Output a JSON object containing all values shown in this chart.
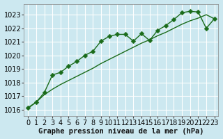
{
  "title": "Graphe pression niveau de la mer (hPa)",
  "background_color": "#cce8f0",
  "plot_bg_color": "#cce8f0",
  "grid_color": "#ffffff",
  "line_color": "#1a6b1a",
  "marker_color": "#1a6b1a",
  "x_values": [
    0,
    1,
    2,
    3,
    4,
    5,
    6,
    7,
    8,
    9,
    10,
    11,
    12,
    13,
    14,
    15,
    16,
    17,
    18,
    19,
    20,
    21,
    22,
    23
  ],
  "y_series1": [
    1016.15,
    1016.55,
    1017.25,
    1018.55,
    1018.75,
    1019.2,
    1019.55,
    1020.0,
    1020.3,
    1021.05,
    1021.4,
    1021.55,
    1021.55,
    1021.05,
    1021.6,
    1021.1,
    1021.85,
    1022.2,
    1022.65,
    1023.15,
    1023.25,
    1023.2,
    1022.0,
    1022.7
  ],
  "y_series2": [
    1016.1,
    1016.55,
    1017.1,
    1017.5,
    1017.85,
    1018.15,
    1018.45,
    1018.75,
    1019.05,
    1019.4,
    1019.7,
    1020.0,
    1020.3,
    1020.6,
    1020.9,
    1021.15,
    1021.45,
    1021.7,
    1022.0,
    1022.3,
    1022.55,
    1022.75,
    1023.0,
    1022.7
  ],
  "ylim": [
    1015.5,
    1023.8
  ],
  "yticks": [
    1016,
    1017,
    1018,
    1019,
    1020,
    1021,
    1022,
    1023
  ],
  "xlim": [
    -0.5,
    23.5
  ],
  "xticks": [
    0,
    1,
    2,
    3,
    4,
    5,
    6,
    7,
    8,
    9,
    10,
    11,
    12,
    13,
    14,
    15,
    16,
    17,
    18,
    19,
    20,
    21,
    22,
    23
  ],
  "tick_fontsize": 7,
  "label_fontsize": 7.5,
  "linewidth": 1.0,
  "markersize": 3.5
}
